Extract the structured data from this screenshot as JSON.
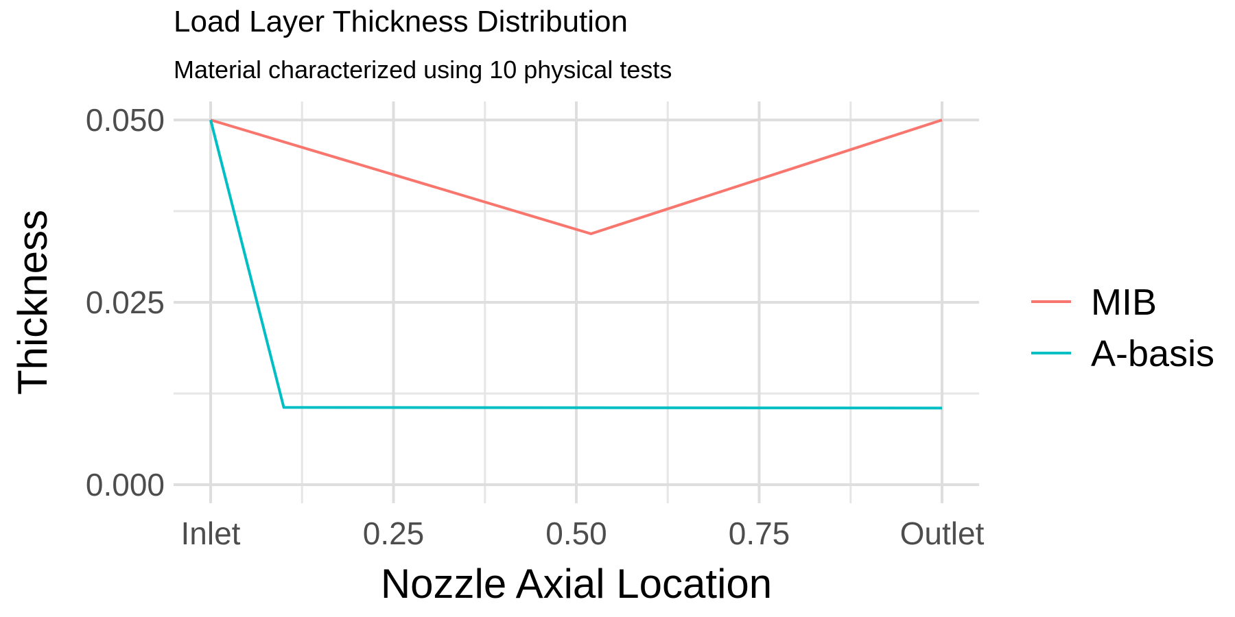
{
  "chart_data": {
    "type": "line",
    "title": "Load Layer Thickness Distribution",
    "subtitle": "Material characterized using 10 physical tests",
    "xlabel": "Nozzle Axial Location",
    "ylabel": "Thickness",
    "xlim": [
      0,
      1
    ],
    "ylim": [
      0,
      0.05
    ],
    "x_ticks": [
      {
        "value": 0,
        "label": "Inlet"
      },
      {
        "value": 0.25,
        "label": "0.25"
      },
      {
        "value": 0.5,
        "label": "0.50"
      },
      {
        "value": 0.75,
        "label": "0.75"
      },
      {
        "value": 1,
        "label": "Outlet"
      }
    ],
    "y_ticks": [
      {
        "value": 0,
        "label": "0.000"
      },
      {
        "value": 0.025,
        "label": "0.025"
      },
      {
        "value": 0.05,
        "label": "0.050"
      }
    ],
    "grid": true,
    "legend_position": "right",
    "series": [
      {
        "name": "MIB",
        "color": "#F8766D",
        "x": [
          0,
          0.52,
          1
        ],
        "y": [
          0.05,
          0.0344,
          0.05
        ]
      },
      {
        "name": "A-basis",
        "color": "#00BFC4",
        "x": [
          0,
          0.1,
          1
        ],
        "y": [
          0.05,
          0.0106,
          0.0105
        ]
      }
    ]
  }
}
